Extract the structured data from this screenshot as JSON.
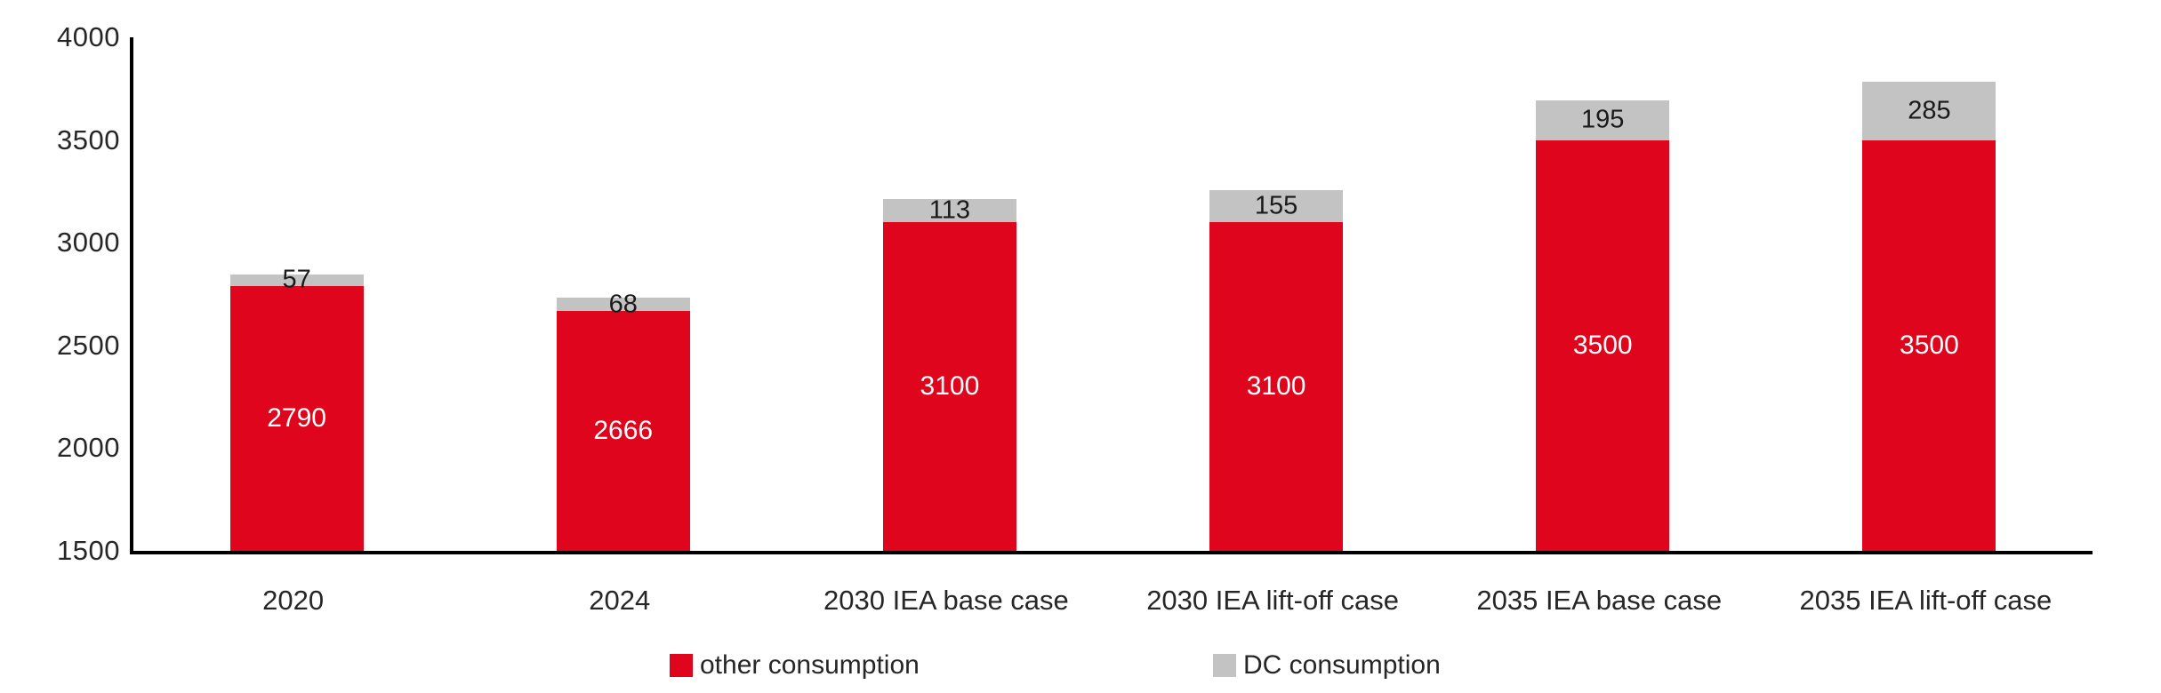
{
  "chart_data": {
    "type": "bar",
    "stacked": true,
    "title": "",
    "xlabel": "",
    "ylabel": "",
    "categories": [
      "2020",
      "2024",
      "2030 IEA base case",
      "2030 IEA lift-off case",
      "2035 IEA base case",
      "2035 IEA lift-off case"
    ],
    "series": [
      {
        "name": "other consumption",
        "color": "#df051c",
        "label_color": "#ffffff",
        "values": [
          2790,
          2666,
          3100,
          3100,
          3500,
          3500
        ]
      },
      {
        "name": "DC consumption",
        "color": "#c3c3c3",
        "label_color": "#1a1a1a",
        "values": [
          57,
          68,
          113,
          155,
          195,
          285
        ]
      }
    ],
    "totals": [
      2847,
      2734,
      3213,
      3255,
      3695,
      3785
    ],
    "ylim": [
      1500,
      4000
    ],
    "yticks": [
      "4000",
      "3500",
      "3000",
      "2500",
      "2000",
      "1500"
    ],
    "grid": false,
    "legend_position": "bottom",
    "axis_color": "#000000",
    "tick_text_color": "#262626",
    "background": "#ffffff"
  }
}
